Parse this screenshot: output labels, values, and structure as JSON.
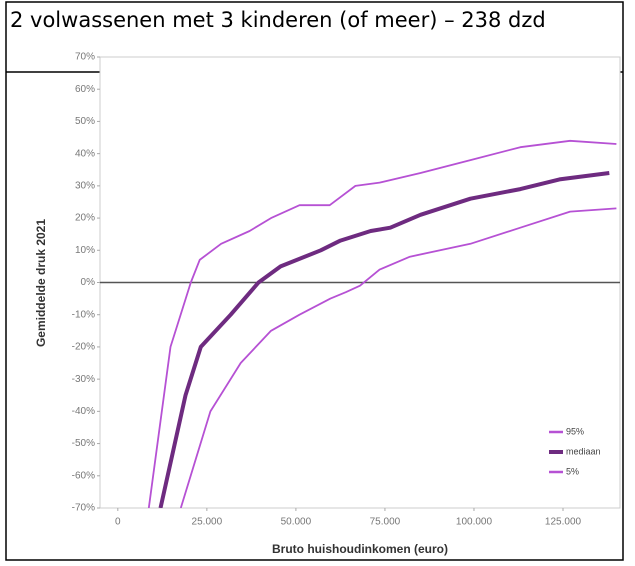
{
  "header": {
    "title": "2 volwassenen met 3 kinderen (of meer) – 238 dzd"
  },
  "chart_data": {
    "type": "line",
    "ylabel": "Gemiddelde druk 2021",
    "xlabel": "Bruto huishoudinkomen (euro)",
    "xlim": [
      -5000,
      141000
    ],
    "ylim": [
      -70,
      70
    ],
    "xticks": [
      0,
      {
        "value": 25000,
        "label": "25.000"
      },
      {
        "value": 50000,
        "label": "50.000"
      },
      {
        "value": 75000,
        "label": "75.000"
      },
      {
        "value": 100000,
        "label": "100.000"
      },
      {
        "value": 125000,
        "label": "125.000"
      }
    ],
    "yticks": [
      {
        "value": 70,
        "label": "70%"
      },
      {
        "value": 60,
        "label": "60%"
      },
      {
        "value": 50,
        "label": "50%"
      },
      {
        "value": 40,
        "label": "40%"
      },
      {
        "value": 30,
        "label": "30%"
      },
      {
        "value": 20,
        "label": "20%"
      },
      {
        "value": 10,
        "label": "10%"
      },
      {
        "value": 0,
        "label": "0%"
      },
      {
        "value": -10,
        "label": "-10%"
      },
      {
        "value": -20,
        "label": "-20%"
      },
      {
        "value": -30,
        "label": "-30%"
      },
      {
        "value": -40,
        "label": "-40%"
      },
      {
        "value": -50,
        "label": "-50%"
      },
      {
        "value": -60,
        "label": "-60%"
      },
      {
        "value": -70,
        "label": "-70%"
      }
    ],
    "legend": "lower right",
    "series": [
      {
        "name": "95%",
        "color": "#b651d4",
        "x": [
          8700,
          14800,
          20500,
          23000,
          29000,
          37000,
          43000,
          51000,
          59500,
          66700,
          73500,
          85000,
          99000,
          113000,
          127000,
          140000
        ],
        "values": [
          -70,
          -20,
          0,
          7,
          12,
          16,
          20,
          24,
          24,
          30,
          31,
          34,
          38,
          42,
          44,
          43
        ]
      },
      {
        "name": "mediaan",
        "color": "#6e2b80",
        "x": [
          12000,
          19000,
          23300,
          31700,
          39500,
          45700,
          57000,
          62500,
          71000,
          76500,
          85000,
          99000,
          113000,
          124000,
          138000
        ],
        "values": [
          -70,
          -35,
          -20,
          -10,
          0,
          5,
          10,
          13,
          16,
          17,
          21,
          26,
          29,
          32,
          34
        ]
      },
      {
        "name": "5%",
        "color": "#b651d4",
        "x": [
          17700,
          26000,
          34500,
          43000,
          51000,
          59700,
          64000,
          68000,
          73500,
          82000,
          99000,
          113000,
          127000,
          140000
        ],
        "values": [
          -70,
          -40,
          -25,
          -15,
          -10,
          -5,
          -3,
          -1,
          4,
          8,
          12,
          17,
          22,
          23
        ]
      }
    ]
  }
}
